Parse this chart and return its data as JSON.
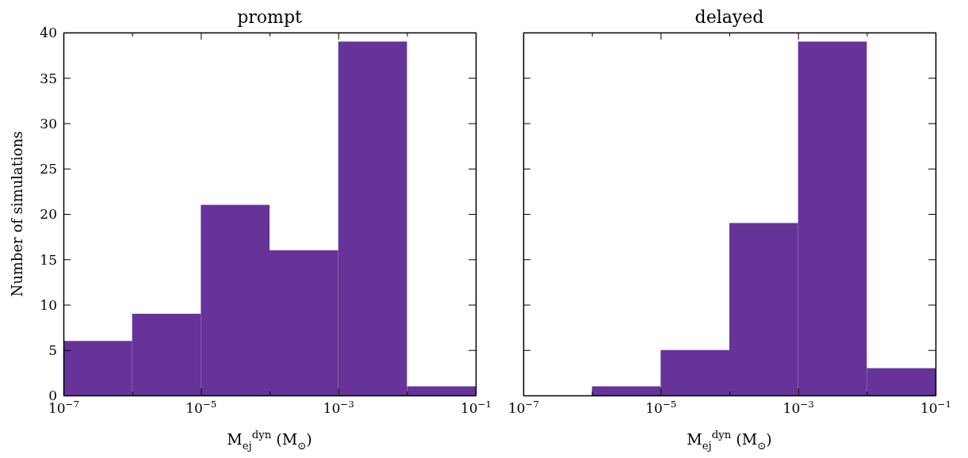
{
  "chart_data": [
    {
      "type": "histogram",
      "title": "prompt",
      "xlabel": "M$_{ej}$$^{dyn}$ (M$_{⊙}$)",
      "ylabel": "Number of simulations",
      "log": "x",
      "bins": [
        1e-07,
        1e-06,
        1e-05,
        0.0001,
        0.001,
        0.01,
        0.1
      ],
      "values": [
        6,
        9,
        21,
        16,
        39,
        1
      ],
      "color": "#663399",
      "xlim": [
        1e-07,
        0.1
      ],
      "xticks": [
        {
          "value": 1e-07,
          "label": "10$^{−7}$"
        },
        {
          "value": 1e-06,
          "label": null
        },
        {
          "value": 1e-05,
          "label": "10$^{−5}$"
        },
        {
          "value": 0.0001,
          "label": null
        },
        {
          "value": 0.001,
          "label": "10$^{−3}$"
        },
        {
          "value": 0.01,
          "label": null
        },
        {
          "value": 0.1,
          "label": "10$^{−1}$"
        }
      ],
      "ylim": [
        0,
        40
      ],
      "yticks": [
        0,
        5,
        10,
        15,
        20,
        25,
        30,
        35,
        40
      ],
      "grid": false
    },
    {
      "type": "histogram",
      "title": "delayed",
      "xlabel": "M$_{ej}$$^{dyn}$ (M$_{⊙}$)",
      "log": "x",
      "bins": [
        1e-07,
        1e-06,
        1e-05,
        0.0001,
        0.001,
        0.01,
        0.1
      ],
      "values": [
        0,
        1,
        5,
        19,
        39,
        3
      ],
      "color": "#663399",
      "xlim": [
        1e-07,
        0.1
      ],
      "xticks": [
        {
          "value": 1e-07,
          "label": "10$^{−7}$"
        },
        {
          "value": 1e-06,
          "label": null
        },
        {
          "value": 1e-05,
          "label": "10$^{−5}$"
        },
        {
          "value": 0.0001,
          "label": null
        },
        {
          "value": 0.001,
          "label": "10$^{−3}$"
        },
        {
          "value": 0.01,
          "label": null
        },
        {
          "value": 0.1,
          "label": "10$^{−1}$"
        }
      ],
      "ylim": [
        0,
        40
      ],
      "yticks": [
        0,
        5,
        10,
        15,
        20,
        25,
        30,
        35,
        40
      ],
      "grid": false,
      "tick_labels": "x"
    }
  ]
}
